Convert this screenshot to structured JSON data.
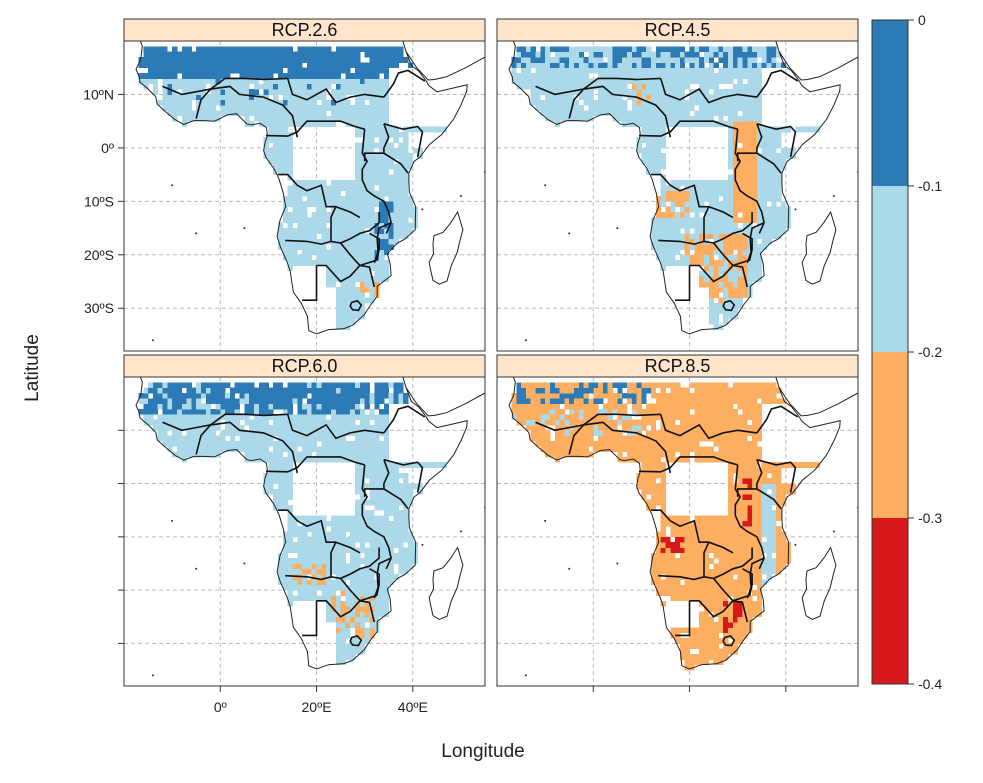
{
  "chart_data": {
    "type": "map",
    "xlabel": "Longitude",
    "ylabel": "Latitude",
    "panels": [
      {
        "title": "RCP.2.6"
      },
      {
        "title": "RCP.4.5"
      },
      {
        "title": "RCP.6.0"
      },
      {
        "title": "RCP.8.5"
      }
    ],
    "x_ticks": [
      {
        "value": 0,
        "label": "0º"
      },
      {
        "value": 20,
        "label": "20ºE"
      },
      {
        "value": 40,
        "label": "40ºE"
      }
    ],
    "y_ticks": [
      {
        "value": 10,
        "label": "10ºN"
      },
      {
        "value": 0,
        "label": "0º"
      },
      {
        "value": -10,
        "label": "10ºS"
      },
      {
        "value": -20,
        "label": "20ºS"
      },
      {
        "value": -30,
        "label": "30ºS"
      }
    ],
    "xlim": [
      -20,
      55
    ],
    "ylim": [
      -38,
      20
    ],
    "grid": true,
    "legend": {
      "position": "right",
      "breaks": [
        "0",
        "-0.1",
        "-0.2",
        "-0.3",
        "-0.4"
      ],
      "classes": [
        {
          "range": [
            0,
            -0.1
          ],
          "color": "#2c7bb6"
        },
        {
          "range": [
            -0.1,
            -0.2
          ],
          "color": "#abd9e9"
        },
        {
          "range": [
            -0.2,
            -0.3
          ],
          "color": "#fdae61"
        },
        {
          "range": [
            -0.3,
            -0.4
          ],
          "color": "#d7191c"
        }
      ]
    }
  }
}
